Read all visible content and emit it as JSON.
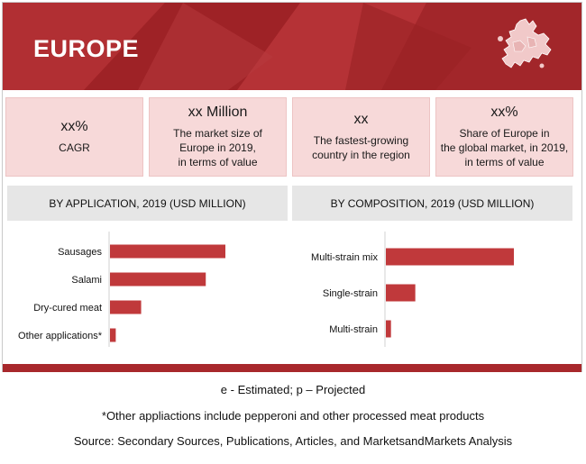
{
  "header": {
    "title": "EUROPE"
  },
  "kpis": [
    {
      "value": "xx%",
      "label_lines": [
        "CAGR"
      ]
    },
    {
      "value": "xx Million",
      "label_lines": [
        "The market size of",
        "Europe in 2019,",
        "in terms of value"
      ]
    },
    {
      "value": "xx",
      "label_lines": [
        "The fastest-growing",
        "country in the region"
      ]
    },
    {
      "value": "xx%",
      "label_lines": [
        "Share of Europe in",
        "the global market, in 2019,",
        "in terms of value"
      ]
    }
  ],
  "sections": {
    "application_title": "BY APPLICATION, 2019 (USD MILLION)",
    "composition_title": "BY COMPOSITION, 2019 (USD MILLION)"
  },
  "colors": {
    "accent": "#a8282c",
    "bar": "#c0393b",
    "kpi_bg": "#f7d9d9",
    "section_bg": "#e6e6e6"
  },
  "chart_data": [
    {
      "type": "bar",
      "orientation": "horizontal",
      "title": "BY APPLICATION, 2019 (USD MILLION)",
      "categories": [
        "Sausages",
        "Salami",
        "Dry-cured meat",
        "Other applications*"
      ],
      "values": [
        100,
        83,
        27,
        5
      ],
      "xlim": [
        0,
        100
      ]
    },
    {
      "type": "bar",
      "orientation": "horizontal",
      "title": "BY COMPOSITION, 2019 (USD MILLION)",
      "categories": [
        "Multi-strain mix",
        "Single-strain",
        "Multi-strain"
      ],
      "values": [
        100,
        23,
        4
      ],
      "xlim": [
        0,
        100
      ]
    }
  ],
  "footnotes": [
    "e - Estimated; p – Projected",
    "*Other appliactions include pepperoni and other processed meat products",
    "Source: Secondary Sources, Publications, Articles, and MarketsandMarkets Analysis"
  ]
}
